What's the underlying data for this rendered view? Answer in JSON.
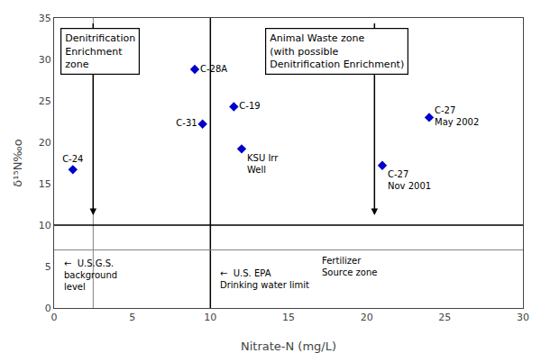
{
  "chart_data": {
    "type": "scatter",
    "x": [
      1.2,
      9.0,
      9.5,
      11.5,
      12.0,
      21.0,
      24.0
    ],
    "values": [
      16.7,
      28.8,
      22.2,
      24.3,
      19.2,
      17.2,
      23.0
    ],
    "labels": [
      "C-24",
      "C-28A",
      "C-31",
      "C-19",
      "KSU Irr\nWell",
      "C-27\nNov 2001",
      "C-27\nMay 2002"
    ],
    "color": "#0000CD",
    "marker": "diamond",
    "xlabel": "Nitrate-N (mg/L)",
    "ylabel": "δ¹⁵N‰o",
    "xlim": [
      0,
      30
    ],
    "ylim": [
      0,
      35
    ],
    "xticks": [
      0,
      5,
      10,
      15,
      20,
      25,
      30
    ],
    "yticks": [
      0,
      5,
      10,
      15,
      20,
      25,
      30,
      35
    ],
    "grid": false,
    "reference_lines": [
      {
        "axis": "x",
        "value": 2.5,
        "color": "gray"
      },
      {
        "axis": "x",
        "value": 10.0,
        "color": "black"
      },
      {
        "axis": "y",
        "value": 10.0,
        "color": "black"
      },
      {
        "axis": "y",
        "value": 7.0,
        "color": "gray"
      }
    ],
    "arrows": [
      {
        "x": 2.5,
        "y_start": 34.5,
        "y_end": 11.2
      },
      {
        "x": 20.5,
        "y_start": 34.5,
        "y_end": 11.2
      }
    ],
    "boxes": [
      {
        "text": "Denitrification\nEnrichment\nzone",
        "x": 0.4,
        "y": 33.8
      },
      {
        "text": "Animal Waste zone\n(with possible\nDenitrification Enrichment)",
        "x": 13.5,
        "y": 33.8
      }
    ],
    "annotations": [
      {
        "text": "←  U.S.G.S.\nbackground\nlevel",
        "x": 0.5,
        "y": 4.0
      },
      {
        "text": "←  U.S. EPA\nDrinking water limit",
        "x": 10.5,
        "y": 3.5
      },
      {
        "text": "Fertilizer\nSource zone",
        "x": 17.0,
        "y": 5.0
      }
    ]
  }
}
